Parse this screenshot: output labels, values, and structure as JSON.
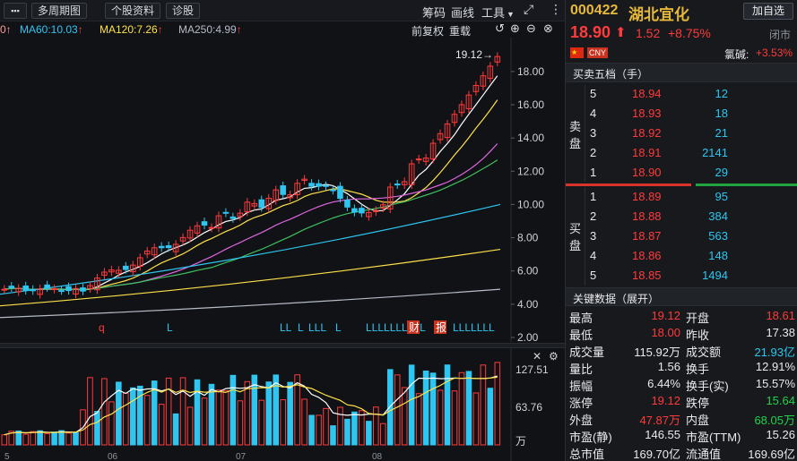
{
  "toolbar": {
    "menu_label": "▪▪▪",
    "multi_period": "多周期图",
    "stock_info": "个股资料",
    "diagnose": "诊股",
    "chips": "筹码",
    "draw": "画线",
    "tools": "工具",
    "expand_icon": "⤢",
    "settings_icon": "⋮"
  },
  "ma_legend": [
    {
      "label": "MA60:10.03",
      "color": "#2ec6f0"
    },
    {
      "label": "MA120:7.26",
      "color": "#ffe14a"
    },
    {
      "label": "MA250:4.99",
      "color": "#b6bcc6"
    }
  ],
  "chart_controls": {
    "adjust": "前复权",
    "reset": "重载"
  },
  "kline": {
    "high_marker": "19.12",
    "y_ticks": [
      "18.00",
      "16.00",
      "14.00",
      "12.00",
      "10.00",
      "8.00",
      "6.00",
      "4.00",
      "2.00"
    ],
    "event_marks": [
      "q",
      "L",
      "LL",
      "L",
      "LLL",
      "L",
      "LLLLLLLLLL",
      "财",
      "报",
      "LLLLLLL"
    ]
  },
  "volume": {
    "y_ticks": [
      "127.51",
      "63.76",
      "万"
    ],
    "x_ticks": [
      "5",
      "06",
      "07",
      "08"
    ],
    "close_icon": "✕",
    "settings_icon": "⚙"
  },
  "chart_data": {
    "type": "bar",
    "title": "",
    "candles_recent_closes": [
      5.0,
      5.1,
      5.2,
      5.0,
      5.3,
      5.5,
      5.8,
      6.3,
      7.6,
      7.8,
      8.2,
      8.6,
      9.0,
      9.4,
      9.8,
      10.6,
      11.2,
      11.4,
      10.1,
      9.6,
      9.3,
      9.5,
      10.0,
      11.5,
      13.2,
      12.9,
      13.6,
      14.2,
      16.3,
      18.9
    ],
    "ylim": [
      2,
      19.5
    ],
    "volume_ylim": [
      0,
      127.51
    ]
  },
  "quote": {
    "code": "000422",
    "name": "湖北宜化",
    "add_watch": "加自选",
    "price": "18.90",
    "change": "1.52",
    "change_pct": "+8.75%",
    "status": "闭市",
    "currency": "CNY",
    "sector": "氯碱:",
    "sector_pct": "+3.53%",
    "orderbook_title": "买卖五档（手）",
    "sell_label": [
      "卖",
      "盘"
    ],
    "buy_label": [
      "买",
      "盘"
    ],
    "asks": [
      {
        "level": "5",
        "price": "18.94",
        "vol": "12"
      },
      {
        "level": "4",
        "price": "18.93",
        "vol": "18"
      },
      {
        "level": "3",
        "price": "18.92",
        "vol": "21"
      },
      {
        "level": "2",
        "price": "18.91",
        "vol": "2141"
      },
      {
        "level": "1",
        "price": "18.90",
        "vol": "29"
      }
    ],
    "bids": [
      {
        "level": "1",
        "price": "18.89",
        "vol": "95"
      },
      {
        "level": "2",
        "price": "18.88",
        "vol": "384"
      },
      {
        "level": "3",
        "price": "18.87",
        "vol": "563"
      },
      {
        "level": "4",
        "price": "18.86",
        "vol": "148"
      },
      {
        "level": "5",
        "price": "18.85",
        "vol": "1494"
      }
    ],
    "keydata_title": "关键数据（展开）",
    "keydata": [
      {
        "l1": "最高",
        "v1": "19.12",
        "c1": "red",
        "l2": "开盘",
        "v2": "18.61",
        "c2": "red"
      },
      {
        "l1": "最低",
        "v1": "18.00",
        "c1": "red",
        "l2": "昨收",
        "v2": "17.38",
        "c2": "white"
      },
      {
        "l1": "成交量",
        "v1": "115.92万",
        "c1": "white",
        "l2": "成交额",
        "v2": "21.93亿",
        "c2": "cyan"
      },
      {
        "l1": "量比",
        "v1": "1.56",
        "c1": "white",
        "l2": "换手",
        "v2": "12.91%",
        "c2": "white"
      },
      {
        "l1": "振幅",
        "v1": "6.44%",
        "c1": "white",
        "l2": "换手(实)",
        "v2": "15.57%",
        "c2": "white"
      },
      {
        "l1": "涨停",
        "v1": "19.12",
        "c1": "red",
        "l2": "跌停",
        "v2": "15.64",
        "c2": "green"
      },
      {
        "l1": "外盘",
        "v1": "47.87万",
        "c1": "red",
        "l2": "内盘",
        "v2": "68.05万",
        "c2": "green"
      },
      {
        "l1": "市盈(静)",
        "v1": "146.55",
        "c1": "white",
        "l2": "市盈(TTM)",
        "v2": "15.26",
        "c2": "white"
      },
      {
        "l1": "总市值",
        "v1": "169.70亿",
        "c1": "white",
        "l2": "流通值",
        "v2": "169.69亿",
        "c2": "white"
      }
    ]
  }
}
